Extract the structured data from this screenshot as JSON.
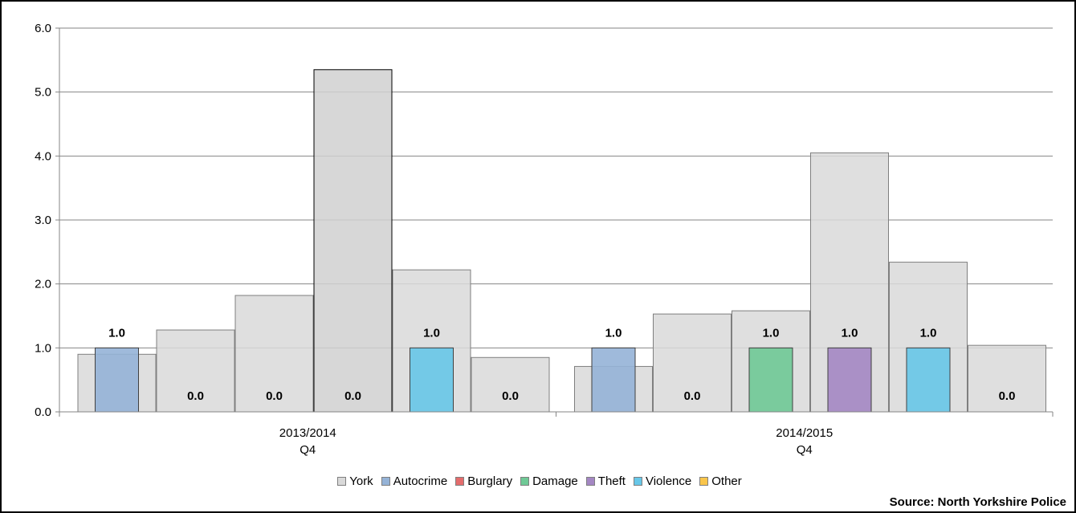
{
  "chart_data": {
    "type": "bar",
    "ylim": [
      0,
      6
    ],
    "y_ticks": [
      "0.0",
      "1.0",
      "2.0",
      "3.0",
      "4.0",
      "5.0",
      "6.0"
    ],
    "grid": true,
    "groups": [
      {
        "label_line1": "2013/2014",
        "label_line2": "Q4",
        "york": [
          0.9,
          1.28,
          1.82,
          5.35,
          2.22,
          0.85
        ],
        "local": [
          {
            "series": "Autocrime",
            "value": 1.0,
            "label": "1.0"
          },
          {
            "series": "Burglary",
            "value": 0.0,
            "label": "0.0"
          },
          {
            "series": "Damage",
            "value": 0.0,
            "label": "0.0"
          },
          {
            "series": "Theft",
            "value": 0.0,
            "label": "0.0"
          },
          {
            "series": "Violence",
            "value": 1.0,
            "label": "1.0"
          },
          {
            "series": "Other",
            "value": 0.0,
            "label": "0.0"
          }
        ]
      },
      {
        "label_line1": "2014/2015",
        "label_line2": "Q4",
        "york": [
          0.71,
          1.53,
          1.58,
          4.05,
          2.34,
          1.04
        ],
        "local": [
          {
            "series": "Autocrime",
            "value": 1.0,
            "label": "1.0"
          },
          {
            "series": "Burglary",
            "value": 0.0,
            "label": "0.0"
          },
          {
            "series": "Damage",
            "value": 1.0,
            "label": "1.0"
          },
          {
            "series": "Theft",
            "value": 1.0,
            "label": "1.0"
          },
          {
            "series": "Violence",
            "value": 1.0,
            "label": "1.0"
          },
          {
            "series": "Other",
            "value": 0.0,
            "label": "0.0"
          }
        ]
      }
    ],
    "legend_position": "bottom",
    "legend": [
      {
        "name": "York",
        "color": "#d9d9d9"
      },
      {
        "name": "Autocrime",
        "color": "#95b3d7"
      },
      {
        "name": "Burglary",
        "color": "#e46c6c"
      },
      {
        "name": "Damage",
        "color": "#6fc996"
      },
      {
        "name": "Theft",
        "color": "#a487c3"
      },
      {
        "name": "Violence",
        "color": "#67c7e8"
      },
      {
        "name": "Other",
        "color": "#f9c54b"
      }
    ]
  },
  "source": "Source: North Yorkshire Police"
}
